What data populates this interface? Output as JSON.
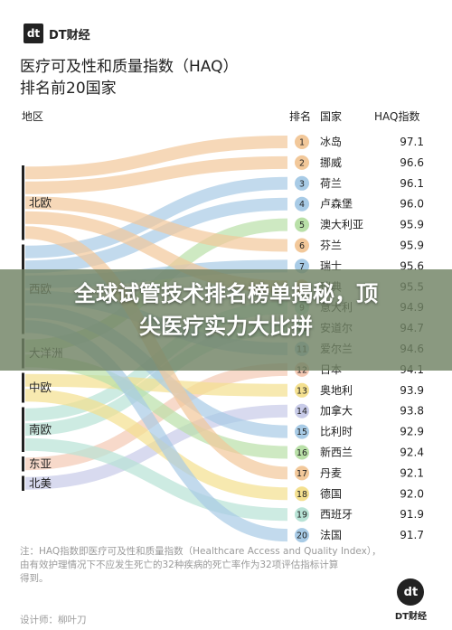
{
  "brand": {
    "logo_mark": "dt",
    "name": "DT财经"
  },
  "title_lines": [
    "医疗可及性和质量指数（HAQ）",
    "排名前20国家"
  ],
  "overlay_lines": [
    "全球试管技术排名榜单揭秘，顶",
    "尖医疗实力大比拼"
  ],
  "notes": [
    "注：HAQ指数即医疗可及性和质量指数（Healthcare Access and Quality Index），",
    "由有效护理情况下不应发生死亡的32种疾病的死亡率作为32项评估指标计算",
    "得到。"
  ],
  "designer": "设计师：柳叶刀",
  "footer_brand": {
    "logo_mark": "dt",
    "name": "DT财经"
  },
  "colors": {
    "北欧": "#f2c89a",
    "西欧": "#a8cbe6",
    "大洋洲": "#b9e0a8",
    "中欧": "#f4e08f",
    "南欧": "#b8e3d6",
    "东亚": "#f4c9b4",
    "北美": "#c8cbe8"
  },
  "chart_data": {
    "type": "sankey",
    "headers": {
      "region": "地区",
      "rank": "排名",
      "country": "国家",
      "haq": "HAQ指数"
    },
    "regions": [
      "北欧",
      "西欧",
      "大洋洲",
      "中欧",
      "南欧",
      "东亚",
      "北美"
    ],
    "rows": [
      {
        "rank": 1,
        "country": "冰岛",
        "haq": 97.1,
        "region": "北欧"
      },
      {
        "rank": 2,
        "country": "挪威",
        "haq": 96.6,
        "region": "北欧"
      },
      {
        "rank": 3,
        "country": "荷兰",
        "haq": 96.1,
        "region": "西欧"
      },
      {
        "rank": 4,
        "country": "卢森堡",
        "haq": 96.0,
        "region": "西欧"
      },
      {
        "rank": 5,
        "country": "澳大利亚",
        "haq": 95.9,
        "region": "大洋洲"
      },
      {
        "rank": 6,
        "country": "芬兰",
        "haq": 95.9,
        "region": "北欧"
      },
      {
        "rank": 7,
        "country": "瑞士",
        "haq": 95.6,
        "region": "西欧"
      },
      {
        "rank": 8,
        "country": "瑞典",
        "haq": 95.5,
        "region": "北欧"
      },
      {
        "rank": 9,
        "country": "意大利",
        "haq": 94.9,
        "region": "南欧"
      },
      {
        "rank": 10,
        "country": "安道尔",
        "haq": 94.7,
        "region": "南欧"
      },
      {
        "rank": 11,
        "country": "爱尔兰",
        "haq": 94.6,
        "region": "西欧"
      },
      {
        "rank": 12,
        "country": "日本",
        "haq": 94.1,
        "region": "东亚"
      },
      {
        "rank": 13,
        "country": "奥地利",
        "haq": 93.9,
        "region": "中欧"
      },
      {
        "rank": 14,
        "country": "加拿大",
        "haq": 93.8,
        "region": "北美"
      },
      {
        "rank": 15,
        "country": "比利时",
        "haq": 92.9,
        "region": "西欧"
      },
      {
        "rank": 16,
        "country": "新西兰",
        "haq": 92.4,
        "region": "大洋洲"
      },
      {
        "rank": 17,
        "country": "丹麦",
        "haq": 92.1,
        "region": "北欧"
      },
      {
        "rank": 18,
        "country": "德国",
        "haq": 92.0,
        "region": "中欧"
      },
      {
        "rank": 19,
        "country": "西班牙",
        "haq": 91.9,
        "region": "南欧"
      },
      {
        "rank": 20,
        "country": "法国",
        "haq": 91.7,
        "region": "西欧"
      }
    ]
  }
}
